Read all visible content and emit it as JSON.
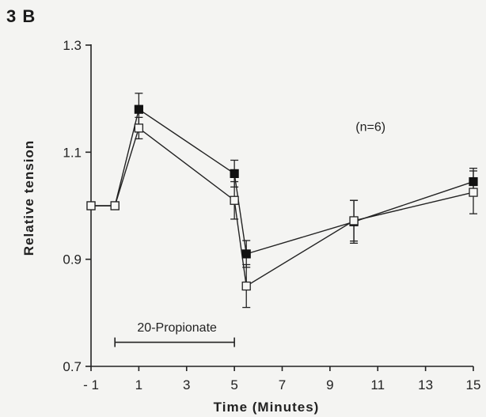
{
  "panel_label": "3 B",
  "chart_data": {
    "type": "line",
    "title": "",
    "xlabel": "Time (Minutes)",
    "ylabel": "Relative tension",
    "xlim": [
      -1,
      15
    ],
    "ylim": [
      0.7,
      1.3
    ],
    "xticks": [
      -1,
      1,
      3,
      5,
      7,
      9,
      11,
      13,
      15
    ],
    "xtick_labels": [
      "- 1",
      "1",
      "3",
      "5",
      "7",
      "9",
      "11",
      "13",
      "15"
    ],
    "yticks": [
      0.7,
      0.9,
      1.1,
      1.3
    ],
    "ytick_labels": [
      "0.7",
      "0.9",
      "1.1",
      "1.3"
    ],
    "grid": false,
    "annotations": [
      {
        "text": "(n=6)",
        "x": 10.7,
        "y": 1.14
      },
      {
        "text": "20-Propionate",
        "x": 2.6,
        "y": 0.765
      }
    ],
    "treatment_bar": {
      "label": "20-Propionate",
      "start": 0,
      "end": 5
    },
    "series": [
      {
        "marker": "filled-square",
        "x": [
          -1,
          0,
          1,
          5,
          5.5,
          10,
          15
        ],
        "y": [
          1.0,
          1.0,
          1.18,
          1.06,
          0.91,
          0.97,
          1.045
        ],
        "err": [
          0,
          0,
          0.03,
          0.025,
          0.025,
          0.04,
          0.025
        ]
      },
      {
        "marker": "open-square",
        "x": [
          -1,
          0,
          1,
          5,
          5.5,
          10,
          15
        ],
        "y": [
          1.0,
          1.0,
          1.145,
          1.01,
          0.85,
          0.972,
          1.025
        ],
        "err": [
          0,
          0,
          0.02,
          0.035,
          0.04,
          0.038,
          0.04
        ]
      }
    ]
  }
}
